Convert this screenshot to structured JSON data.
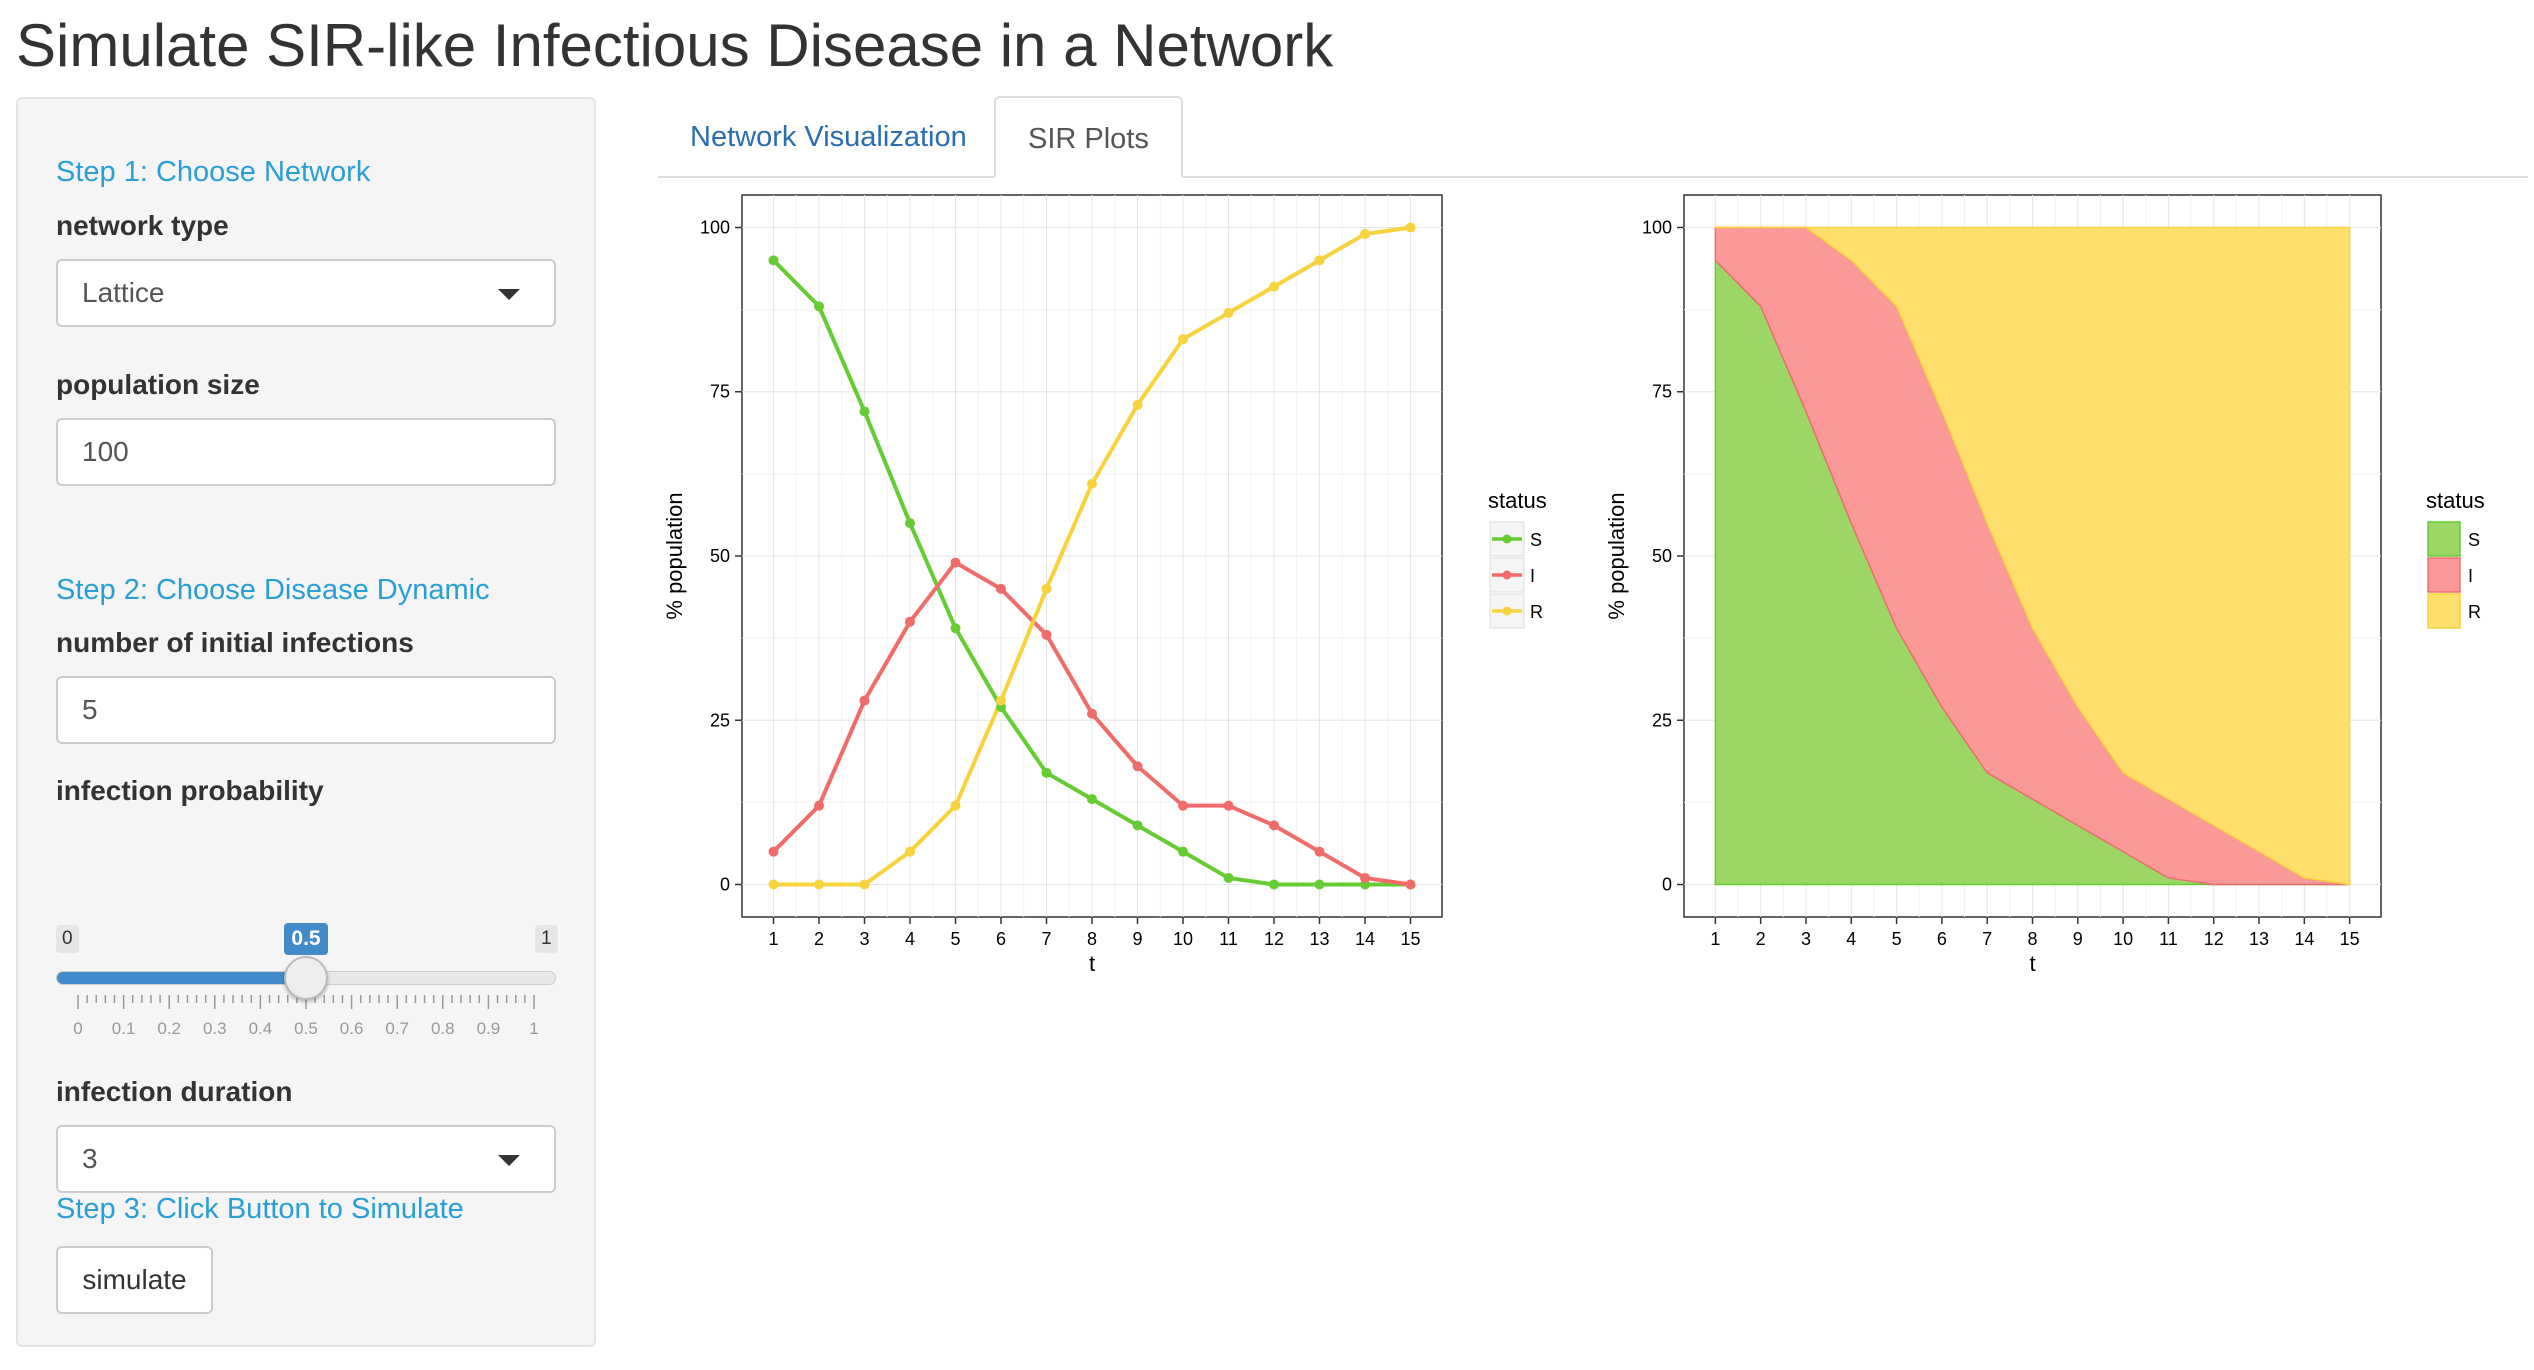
{
  "title": "Simulate SIR-like Infectious Disease in a Network",
  "sidebar": {
    "step1_heading": "Step 1: Choose Network",
    "network_type": {
      "label": "network type",
      "value": "Lattice"
    },
    "population_size": {
      "label": "population size",
      "value": "100"
    },
    "step2_heading": "Step 2: Choose Disease Dynamic",
    "initial_infections": {
      "label": "number of initial infections",
      "value": "5"
    },
    "infection_probability": {
      "label": "infection probability",
      "min": "0",
      "max": "1",
      "value": "0.5",
      "value_fraction": 0.5,
      "ticks": [
        "0",
        "0.1",
        "0.2",
        "0.3",
        "0.4",
        "0.5",
        "0.6",
        "0.7",
        "0.8",
        "0.9",
        "1"
      ]
    },
    "infection_duration": {
      "label": "infection duration",
      "value": "3"
    },
    "step3_heading": "Step 3: Click Button to Simulate",
    "simulate_label": "simulate"
  },
  "tabs": [
    {
      "label": "Network Visualization",
      "active": false
    },
    {
      "label": "SIR Plots",
      "active": true
    }
  ],
  "colors": {
    "accent": "#2a9fd6",
    "slider": "#428bca",
    "S": "#66cc33",
    "I": "#f26b6b",
    "R": "#f7d33d",
    "S_fill": "#9cd766",
    "I_fill": "#fb9999",
    "R_fill": "#ffdf6b"
  },
  "chart_data": [
    {
      "type": "line",
      "xlabel": "t",
      "ylabel": "% population",
      "x": [
        1,
        2,
        3,
        4,
        5,
        6,
        7,
        8,
        9,
        10,
        11,
        12,
        13,
        14,
        15
      ],
      "xlim": [
        1,
        15
      ],
      "ylim": [
        0,
        100
      ],
      "yticks": [
        0,
        25,
        50,
        75,
        100
      ],
      "legend_title": "status",
      "legend_position": "right",
      "grid": true,
      "markers": true,
      "series": [
        {
          "name": "S",
          "values": [
            95,
            88,
            72,
            55,
            39,
            27,
            17,
            13,
            9,
            5,
            1,
            0,
            0,
            0,
            0
          ]
        },
        {
          "name": "I",
          "values": [
            5,
            12,
            28,
            40,
            49,
            45,
            38,
            26,
            18,
            12,
            12,
            9,
            5,
            1,
            0
          ]
        },
        {
          "name": "R",
          "values": [
            0,
            0,
            0,
            5,
            12,
            28,
            45,
            61,
            73,
            83,
            87,
            91,
            95,
            99,
            100
          ]
        }
      ]
    },
    {
      "type": "area",
      "stacked": true,
      "xlabel": "t",
      "ylabel": "% population",
      "x": [
        1,
        2,
        3,
        4,
        5,
        6,
        7,
        8,
        9,
        10,
        11,
        12,
        13,
        14,
        15
      ],
      "xlim": [
        1,
        15
      ],
      "ylim": [
        0,
        100
      ],
      "yticks": [
        0,
        25,
        50,
        75,
        100
      ],
      "legend_title": "status",
      "legend_position": "right",
      "grid": true,
      "series": [
        {
          "name": "S",
          "values": [
            95,
            88,
            72,
            55,
            39,
            27,
            17,
            13,
            9,
            5,
            1,
            0,
            0,
            0,
            0
          ]
        },
        {
          "name": "I",
          "values": [
            5,
            12,
            28,
            40,
            49,
            45,
            38,
            26,
            18,
            12,
            12,
            9,
            5,
            1,
            0
          ]
        },
        {
          "name": "R",
          "values": [
            0,
            0,
            0,
            5,
            12,
            28,
            45,
            61,
            73,
            83,
            87,
            91,
            95,
            99,
            100
          ]
        }
      ]
    }
  ]
}
